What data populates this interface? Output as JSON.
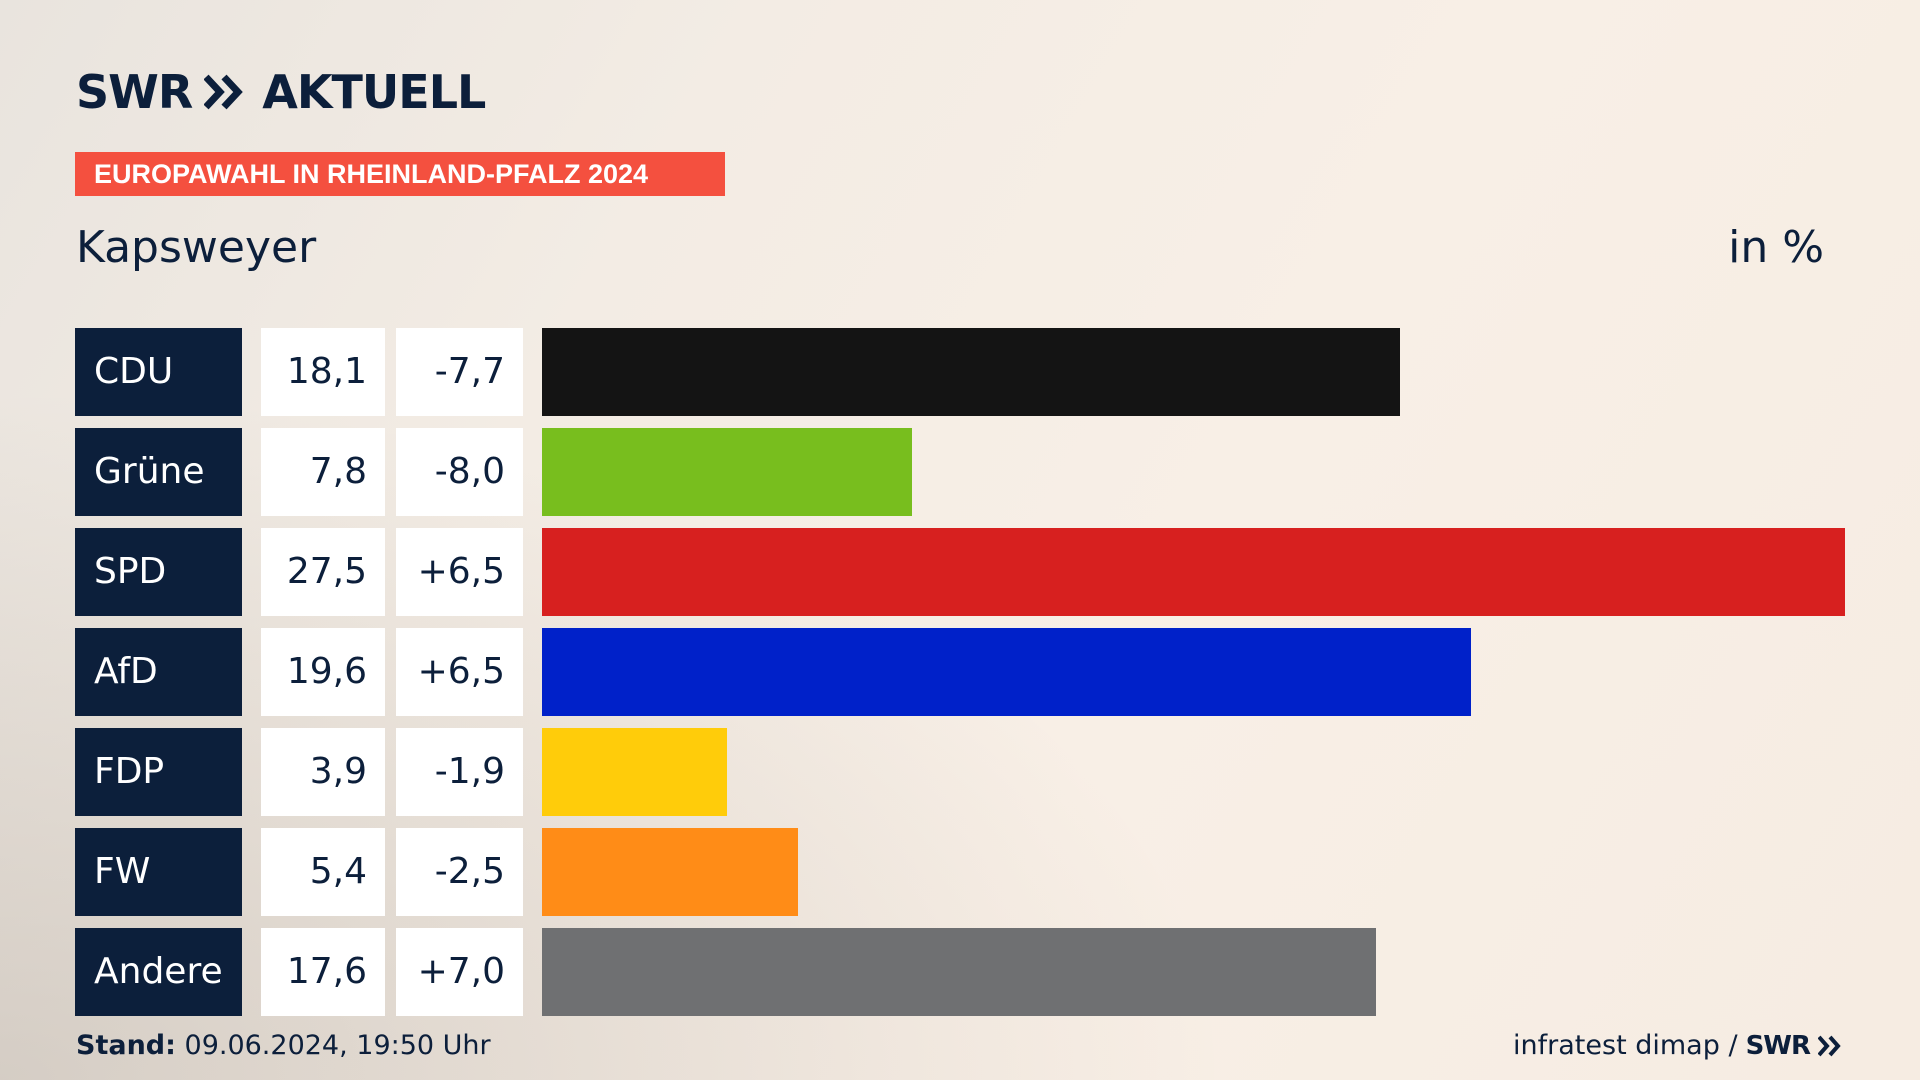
{
  "header": {
    "brand_left": "SWR",
    "brand_right": "AKTUELL",
    "tag": "EUROPAWAHL IN RHEINLAND-PFALZ 2024",
    "place": "Kapsweyer",
    "unit": "in %"
  },
  "footer": {
    "stand_label": "Stand:",
    "stand_value": "09.06.2024, 19:50 Uhr",
    "source": "infratest dimap /",
    "source_brand": "SWR"
  },
  "colors": {
    "navy": "#0c1f3b",
    "tag_red": "#f4503f"
  },
  "chart_data": {
    "type": "bar",
    "categories": [
      "CDU",
      "Grüne",
      "SPD",
      "AfD",
      "FDP",
      "FW",
      "Andere"
    ],
    "values": [
      18.1,
      7.8,
      27.5,
      19.6,
      3.9,
      5.4,
      17.6
    ],
    "value_labels": [
      "18,1",
      "7,8",
      "27,5",
      "19,6",
      "3,9",
      "5,4",
      "17,6"
    ],
    "diff_labels": [
      "-7,7",
      "-8,0",
      "+6,5",
      "+6,5",
      "-1,9",
      "-2,5",
      "+7,0"
    ],
    "colors": [
      "#141414",
      "#78be1e",
      "#d7201f",
      "#0021c9",
      "#ffcc0a",
      "#ff8c17",
      "#6f7072"
    ],
    "title": "Kapsweyer",
    "ylabel": "in %",
    "xlim": [
      0,
      27.5
    ],
    "grid": false
  }
}
